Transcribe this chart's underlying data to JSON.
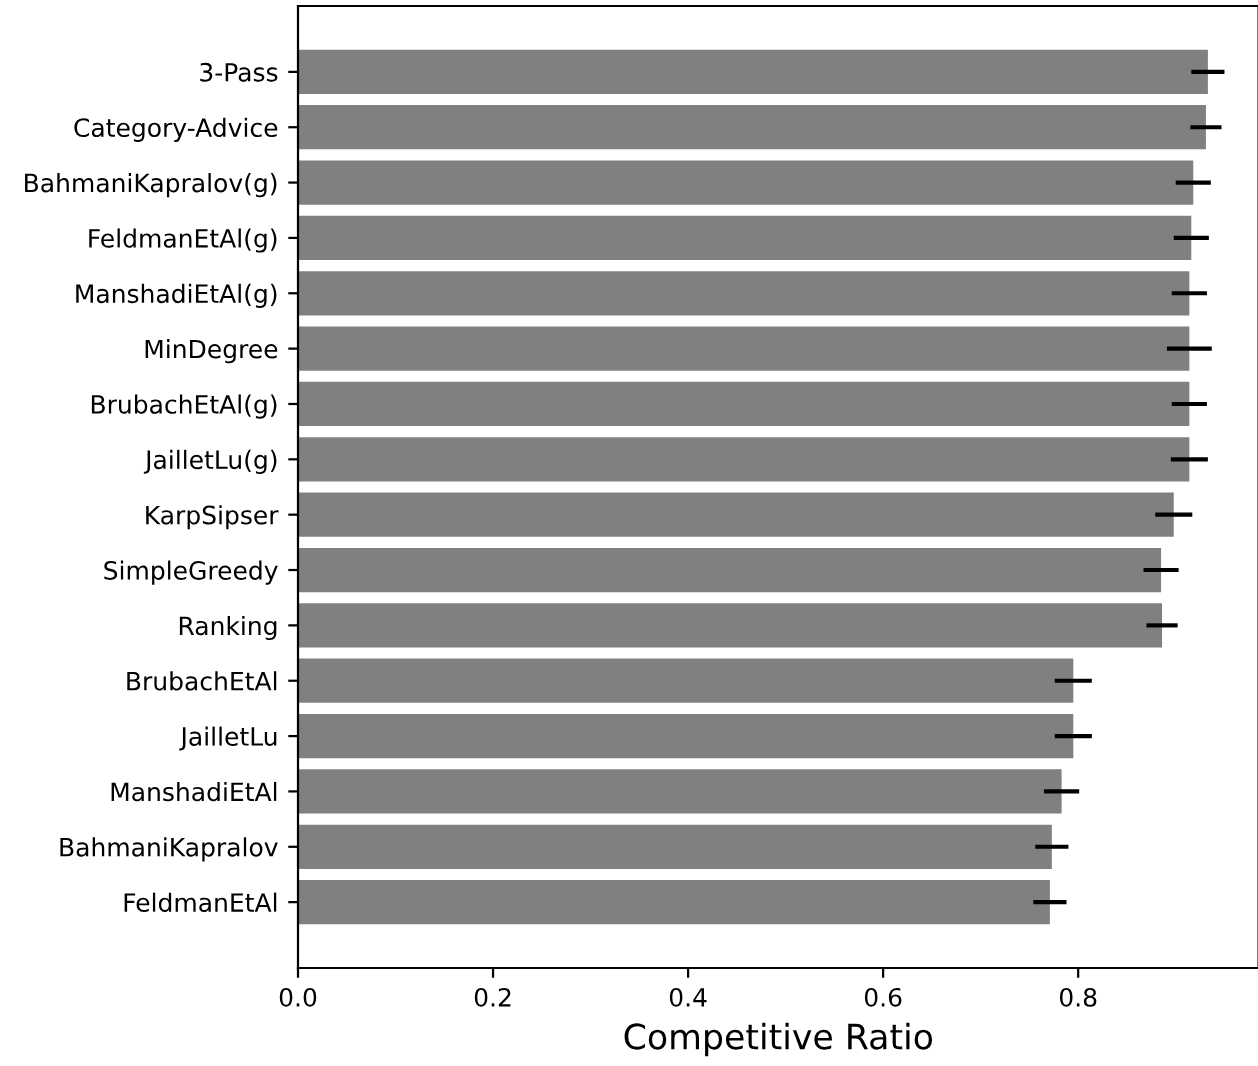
{
  "chart_data": {
    "type": "bar",
    "orientation": "horizontal",
    "xlabel": "Competitive Ratio",
    "categories": [
      "3-Pass",
      "Category-Advice",
      "BahmaniKapralov(g)",
      "FeldmanEtAl(g)",
      "ManshadiEtAl(g)",
      "MinDegree",
      "BrubachEtAl(g)",
      "JailletLu(g)",
      "KarpSipser",
      "SimpleGreedy",
      "Ranking",
      "BrubachEtAl",
      "JailletLu",
      "ManshadiEtAl",
      "BahmaniKapralov",
      "FeldmanEtAl"
    ],
    "values": [
      0.933,
      0.931,
      0.918,
      0.916,
      0.914,
      0.914,
      0.914,
      0.914,
      0.898,
      0.885,
      0.886,
      0.795,
      0.795,
      0.783,
      0.773,
      0.771
    ],
    "errors": [
      0.017,
      0.016,
      0.018,
      0.018,
      0.018,
      0.023,
      0.018,
      0.019,
      0.019,
      0.018,
      0.016,
      0.019,
      0.019,
      0.018,
      0.017,
      0.017
    ],
    "color": "#808080",
    "xlim": [
      0,
      0.985
    ],
    "xticks": [
      {
        "value": 0,
        "label": "0.0"
      },
      0.2,
      0.4,
      0.6,
      0.8
    ],
    "grid": false
  }
}
